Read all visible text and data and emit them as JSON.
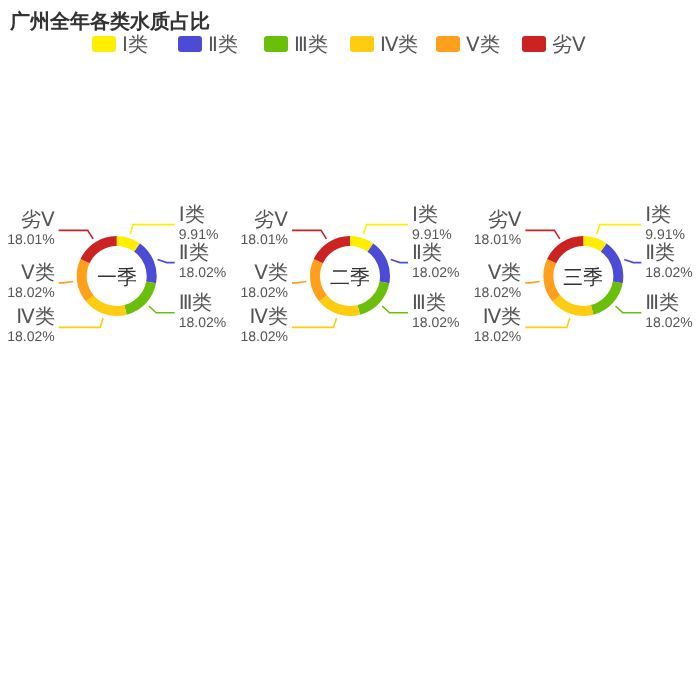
{
  "chart_data": [
    {
      "type": "donut",
      "title": "一季",
      "annotations": [
        "广州全年各类水质占比"
      ],
      "legend": "top",
      "categories": [
        "Ⅰ类",
        "Ⅱ类",
        "Ⅲ类",
        "Ⅳ类",
        "Ⅴ类",
        "劣Ⅴ"
      ],
      "values": [
        9.91,
        18.02,
        18.02,
        18.02,
        18.02,
        18.01
      ],
      "value_labels": [
        "9.91%",
        "18.02%",
        "18.02%",
        "18.02%",
        "18.02%",
        "18.01%"
      ],
      "colors": [
        "#ffee00",
        "#4b4bd6",
        "#6abf0a",
        "#ffcc11",
        "#ff9f1c",
        "#cc2222"
      ]
    },
    {
      "type": "donut",
      "title": "二季",
      "categories": [
        "Ⅰ类",
        "Ⅱ类",
        "Ⅲ类",
        "Ⅳ类",
        "Ⅴ类",
        "劣Ⅴ"
      ],
      "values": [
        9.91,
        18.02,
        18.02,
        18.02,
        18.02,
        18.01
      ],
      "value_labels": [
        "9.91%",
        "18.02%",
        "18.02%",
        "18.02%",
        "18.02%",
        "18.01%"
      ],
      "colors": [
        "#ffee00",
        "#4b4bd6",
        "#6abf0a",
        "#ffcc11",
        "#ff9f1c",
        "#cc2222"
      ]
    },
    {
      "type": "donut",
      "title": "三季",
      "categories": [
        "Ⅰ类",
        "Ⅱ类",
        "Ⅲ类",
        "Ⅳ类",
        "Ⅴ类",
        "劣Ⅴ"
      ],
      "values": [
        9.91,
        18.02,
        18.02,
        18.02,
        18.02,
        18.01
      ],
      "value_labels": [
        "9.91%",
        "18.02%",
        "18.02%",
        "18.02%",
        "18.02%",
        "18.01%"
      ],
      "colors": [
        "#ffee00",
        "#4b4bd6",
        "#6abf0a",
        "#ffcc11",
        "#ff9f1c",
        "#cc2222"
      ]
    }
  ]
}
